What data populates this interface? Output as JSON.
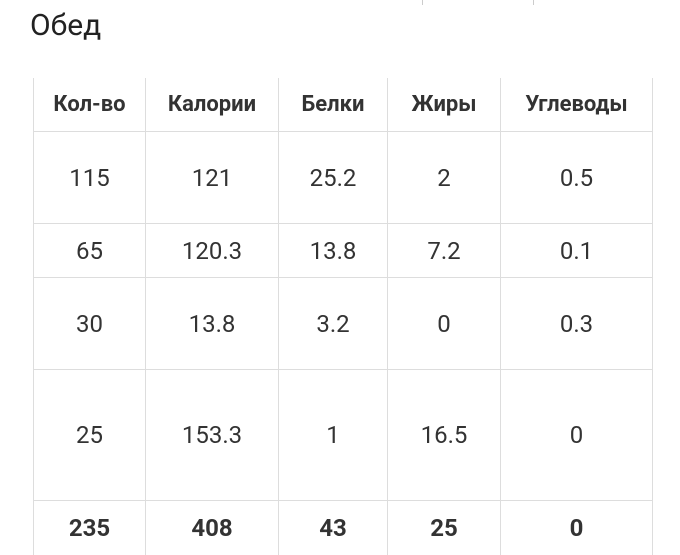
{
  "header": {
    "title": "Обед"
  },
  "table": {
    "columns": [
      "Кол-во",
      "Калории",
      "Белки",
      "Жиры",
      "Углеводы"
    ],
    "rows": [
      [
        "115",
        "121",
        "25.2",
        "2",
        "0.5"
      ],
      [
        "65",
        "120.3",
        "13.8",
        "7.2",
        "0.1"
      ],
      [
        "30",
        "13.8",
        "3.2",
        "0",
        "0.3"
      ],
      [
        "25",
        "153.3",
        "1",
        "16.5",
        "0"
      ]
    ],
    "total": [
      "235",
      "408",
      "43",
      "25",
      "0"
    ]
  }
}
